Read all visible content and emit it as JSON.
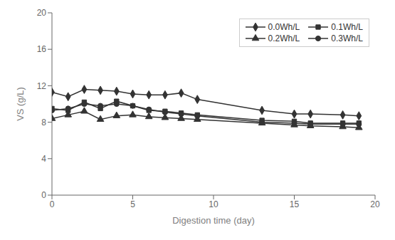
{
  "chart_data": {
    "type": "line",
    "xlabel": "Digestion time (day)",
    "ylabel": "VS (g/L)",
    "x": [
      0,
      1,
      2,
      3,
      4,
      5,
      6,
      7,
      8,
      9,
      13,
      15,
      16,
      18,
      19
    ],
    "xlim": [
      0,
      20
    ],
    "ylim": [
      0,
      20
    ],
    "xticks": [
      0,
      5,
      10,
      15,
      20
    ],
    "yticks": [
      0,
      4,
      8,
      12,
      16,
      20
    ],
    "grid": false,
    "legend": "upper right",
    "series": [
      {
        "name": "0.0Wh/L",
        "color": "#333333",
        "marker": "diamond",
        "values": [
          11.3,
          10.8,
          11.6,
          11.5,
          11.4,
          11.1,
          11.0,
          11.0,
          11.2,
          10.5,
          9.3,
          8.9,
          8.9,
          8.8,
          8.7
        ]
      },
      {
        "name": "0.1Wh/L",
        "color": "#333333",
        "marker": "square",
        "values": [
          9.5,
          9.3,
          10.2,
          9.5,
          10.3,
          9.8,
          9.3,
          9.2,
          9.0,
          8.8,
          8.2,
          8.1,
          7.9,
          7.9,
          7.9
        ]
      },
      {
        "name": "0.2Wh/L",
        "color": "#333333",
        "marker": "triangle",
        "values": [
          8.4,
          8.8,
          9.2,
          8.3,
          8.7,
          8.8,
          8.6,
          8.5,
          8.4,
          8.3,
          7.9,
          7.7,
          7.6,
          7.5,
          7.4
        ]
      },
      {
        "name": "0.3Wh/L",
        "color": "#333333",
        "marker": "circle",
        "values": [
          9.3,
          9.5,
          10.0,
          9.8,
          10.0,
          9.8,
          9.4,
          9.1,
          8.9,
          8.7,
          8.0,
          7.9,
          7.8,
          7.8,
          7.8
        ]
      }
    ]
  }
}
